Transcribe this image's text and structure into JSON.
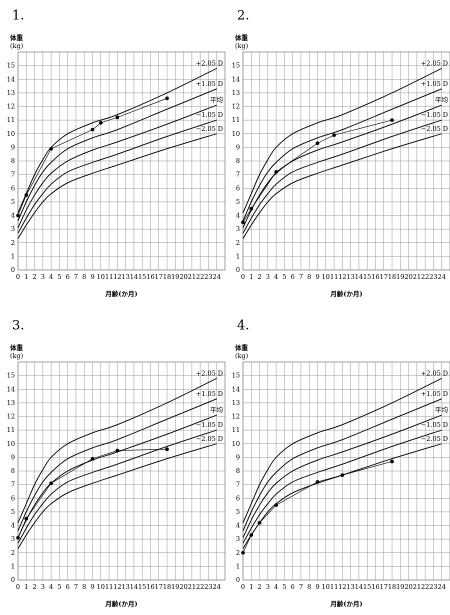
{
  "chart_data": [
    {
      "type": "growth",
      "panel": "1.",
      "y_label": "体重",
      "y_unit": "(kg)",
      "x_label": "月齢(か月)",
      "xlim": [
        0,
        25
      ],
      "ylim": [
        0,
        16
      ],
      "xticks": [
        0,
        1,
        2,
        3,
        4,
        5,
        6,
        7,
        8,
        9,
        10,
        11,
        12,
        13,
        14,
        15,
        16,
        17,
        18,
        19,
        20,
        21,
        22,
        23,
        24
      ],
      "yticks": [
        0,
        1,
        2,
        3,
        4,
        5,
        6,
        7,
        8,
        9,
        10,
        11,
        12,
        13,
        14,
        15
      ],
      "grid": true,
      "x": [
        0,
        1,
        2,
        3,
        4,
        6,
        9,
        12,
        18,
        24
      ],
      "series": [
        {
          "name": "+2.05 D",
          "color": "#000000",
          "values": [
            4.2,
            5.6,
            7.0,
            8.1,
            9.0,
            10.0,
            10.8,
            11.4,
            13.0,
            14.8
          ]
        },
        {
          "name": "+1.05 D",
          "color": "#000000",
          "values": [
            3.6,
            5.0,
            6.2,
            7.2,
            7.9,
            8.9,
            9.7,
            10.3,
            11.8,
            13.3
          ]
        },
        {
          "name": "平均",
          "color": "#000000",
          "values": [
            3.1,
            4.4,
            5.5,
            6.4,
            7.1,
            8.0,
            8.8,
            9.4,
            10.7,
            12.1
          ]
        },
        {
          "name": "−1.05 D",
          "color": "#000000",
          "values": [
            2.7,
            3.8,
            4.8,
            5.6,
            6.3,
            7.2,
            7.9,
            8.5,
            9.8,
            11.0
          ]
        },
        {
          "name": "−2.05 D",
          "color": "#000000",
          "values": [
            2.3,
            3.3,
            4.2,
            5.0,
            5.6,
            6.4,
            7.1,
            7.7,
            8.9,
            10.0
          ]
        }
      ],
      "points_x": [
        0,
        1,
        4,
        9,
        10,
        12,
        18
      ],
      "points": [
        4.0,
        5.5,
        8.9,
        10.3,
        10.8,
        11.2,
        12.6
      ]
    },
    {
      "type": "growth",
      "panel": "2.",
      "y_label": "体重",
      "y_unit": "(kg)",
      "x_label": "月齢(か月)",
      "xlim": [
        0,
        25
      ],
      "ylim": [
        0,
        16
      ],
      "xticks": [
        0,
        1,
        2,
        3,
        4,
        5,
        6,
        7,
        8,
        9,
        10,
        11,
        12,
        13,
        14,
        15,
        16,
        17,
        18,
        19,
        20,
        21,
        22,
        23,
        24
      ],
      "yticks": [
        0,
        1,
        2,
        3,
        4,
        5,
        6,
        7,
        8,
        9,
        10,
        11,
        12,
        13,
        14,
        15
      ],
      "grid": true,
      "x": [
        0,
        1,
        2,
        3,
        4,
        6,
        9,
        12,
        18,
        24
      ],
      "series": [
        {
          "name": "+2.05 D",
          "color": "#000000",
          "values": [
            4.2,
            5.6,
            7.0,
            8.1,
            9.0,
            10.0,
            10.8,
            11.4,
            13.0,
            14.8
          ]
        },
        {
          "name": "+1.05 D",
          "color": "#000000",
          "values": [
            3.6,
            5.0,
            6.2,
            7.2,
            7.9,
            8.9,
            9.7,
            10.3,
            11.8,
            13.3
          ]
        },
        {
          "name": "平均",
          "color": "#000000",
          "values": [
            3.1,
            4.4,
            5.5,
            6.4,
            7.1,
            8.0,
            8.8,
            9.4,
            10.7,
            12.1
          ]
        },
        {
          "name": "−1.05 D",
          "color": "#000000",
          "values": [
            2.7,
            3.8,
            4.8,
            5.6,
            6.3,
            7.2,
            7.9,
            8.5,
            9.8,
            11.0
          ]
        },
        {
          "name": "−2.05 D",
          "color": "#000000",
          "values": [
            2.3,
            3.3,
            4.2,
            5.0,
            5.6,
            6.4,
            7.1,
            7.7,
            8.9,
            10.0
          ]
        }
      ],
      "points_x": [
        0,
        1,
        4,
        9,
        11,
        18
      ],
      "points": [
        3.5,
        4.5,
        7.2,
        9.3,
        9.9,
        11.0
      ]
    },
    {
      "type": "growth",
      "panel": "3.",
      "y_label": "体重",
      "y_unit": "(kg)",
      "x_label": "月齢(か月)",
      "xlim": [
        0,
        25
      ],
      "ylim": [
        0,
        16
      ],
      "xticks": [
        0,
        1,
        2,
        3,
        4,
        5,
        6,
        7,
        8,
        9,
        10,
        11,
        12,
        13,
        14,
        15,
        16,
        17,
        18,
        19,
        20,
        21,
        22,
        23,
        24
      ],
      "yticks": [
        0,
        1,
        2,
        3,
        4,
        5,
        6,
        7,
        8,
        9,
        10,
        11,
        12,
        13,
        14,
        15
      ],
      "grid": true,
      "x": [
        0,
        1,
        2,
        3,
        4,
        6,
        9,
        12,
        18,
        24
      ],
      "series": [
        {
          "name": "+2.05 D",
          "color": "#000000",
          "values": [
            4.2,
            5.6,
            7.0,
            8.1,
            9.0,
            10.0,
            10.8,
            11.4,
            13.0,
            14.8
          ]
        },
        {
          "name": "+1.05 D",
          "color": "#000000",
          "values": [
            3.6,
            5.0,
            6.2,
            7.2,
            7.9,
            8.9,
            9.7,
            10.3,
            11.8,
            13.3
          ]
        },
        {
          "name": "平均",
          "color": "#000000",
          "values": [
            3.1,
            4.4,
            5.5,
            6.4,
            7.1,
            8.0,
            8.8,
            9.4,
            10.7,
            12.1
          ]
        },
        {
          "name": "−1.05 D",
          "color": "#000000",
          "values": [
            2.7,
            3.8,
            4.8,
            5.6,
            6.3,
            7.2,
            7.9,
            8.5,
            9.8,
            11.0
          ]
        },
        {
          "name": "−2.05 D",
          "color": "#000000",
          "values": [
            2.3,
            3.3,
            4.2,
            5.0,
            5.6,
            6.4,
            7.1,
            7.7,
            8.9,
            10.0
          ]
        }
      ],
      "points_x": [
        0,
        1,
        4,
        9,
        12,
        18
      ],
      "points": [
        3.1,
        4.5,
        7.1,
        8.9,
        9.5,
        9.6
      ]
    },
    {
      "type": "growth",
      "panel": "4.",
      "y_label": "体重",
      "y_unit": "(kg)",
      "x_label": "月齢(か月)",
      "xlim": [
        0,
        25
      ],
      "ylim": [
        0,
        16
      ],
      "xticks": [
        0,
        1,
        2,
        3,
        4,
        5,
        6,
        7,
        8,
        9,
        10,
        11,
        12,
        13,
        14,
        15,
        16,
        17,
        18,
        19,
        20,
        21,
        22,
        23,
        24
      ],
      "yticks": [
        0,
        1,
        2,
        3,
        4,
        5,
        6,
        7,
        8,
        9,
        10,
        11,
        12,
        13,
        14,
        15
      ],
      "grid": true,
      "x": [
        0,
        1,
        2,
        3,
        4,
        6,
        9,
        12,
        18,
        24
      ],
      "series": [
        {
          "name": "+2.05 D",
          "color": "#000000",
          "values": [
            4.2,
            5.6,
            7.0,
            8.1,
            9.0,
            10.0,
            10.8,
            11.4,
            13.0,
            14.8
          ]
        },
        {
          "name": "+1.05 D",
          "color": "#000000",
          "values": [
            3.6,
            5.0,
            6.2,
            7.2,
            7.9,
            8.9,
            9.7,
            10.3,
            11.8,
            13.3
          ]
        },
        {
          "name": "平均",
          "color": "#000000",
          "values": [
            3.1,
            4.4,
            5.5,
            6.4,
            7.1,
            8.0,
            8.8,
            9.4,
            10.7,
            12.1
          ]
        },
        {
          "name": "−1.05 D",
          "color": "#000000",
          "values": [
            2.7,
            3.8,
            4.8,
            5.6,
            6.3,
            7.2,
            7.9,
            8.5,
            9.8,
            11.0
          ]
        },
        {
          "name": "−2.05 D",
          "color": "#000000",
          "values": [
            2.3,
            3.3,
            4.2,
            5.0,
            5.6,
            6.4,
            7.1,
            7.7,
            8.9,
            10.0
          ]
        }
      ],
      "points_x": [
        0,
        1,
        2,
        4,
        9,
        12,
        18
      ],
      "points": [
        2.0,
        3.3,
        4.2,
        5.5,
        7.2,
        7.7,
        8.7
      ]
    }
  ]
}
